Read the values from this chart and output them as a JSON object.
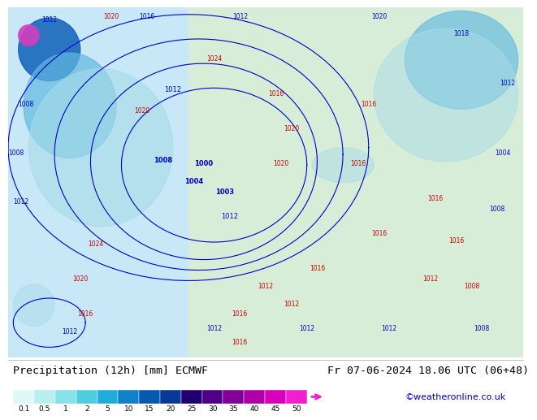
{
  "title_left": "Precipitation (12h) [mm] ECMWF",
  "title_right": "Fr 07-06-2024 18.06 UTC (06+48)",
  "credit": "©weatheronline.co.uk",
  "colorbar_values": [
    0.1,
    0.5,
    1,
    2,
    5,
    10,
    15,
    20,
    25,
    30,
    35,
    40,
    45,
    50
  ],
  "colorbar_labels": [
    "0.1",
    "0.5",
    "1",
    "2",
    "5",
    "10",
    "15",
    "20",
    "25",
    "30",
    "35",
    "40",
    "45",
    "50"
  ],
  "colorbar_colors": [
    "#e0f8f8",
    "#c0f0f0",
    "#a0e8e8",
    "#70d8e8",
    "#40c8e0",
    "#20a8d8",
    "#1080c8",
    "#0858b0",
    "#083898",
    "#400080",
    "#700090",
    "#9800a0",
    "#c000b0",
    "#e000c0",
    "#f020d0"
  ],
  "map_bg_color": "#e8f4e8",
  "label_font_size": 9,
  "title_font_size": 9.5,
  "credit_color": "#0000cc",
  "credit_font_size": 8
}
